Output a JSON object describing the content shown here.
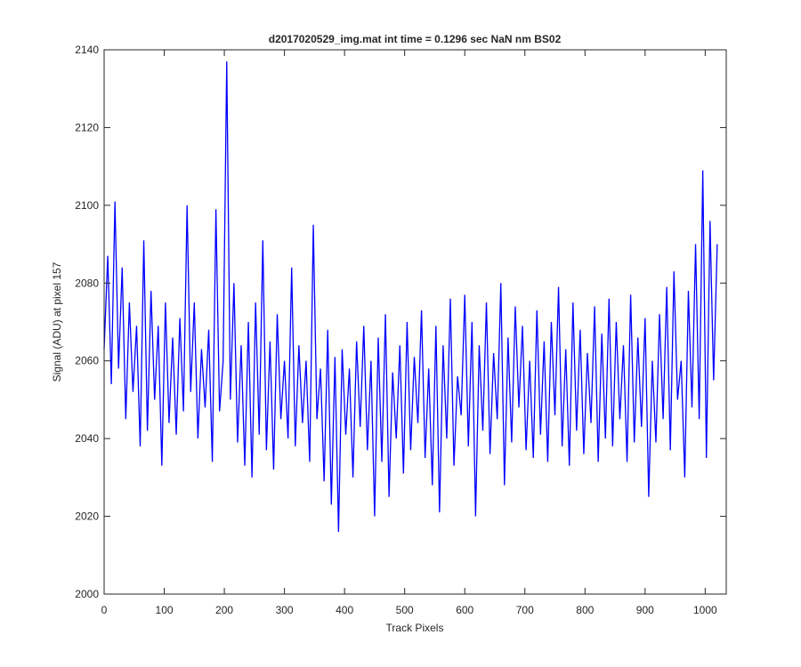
{
  "chart_data": {
    "type": "line",
    "title": "d2017020529_img.mat int time = 0.1296 sec  NaN nm BS02",
    "x_label": "Track Pixels",
    "y_label": "Signal (ADU) at pixel 157",
    "color": "#0000ff",
    "xlim": [
      0,
      1035
    ],
    "ylim": [
      2000,
      2140
    ],
    "xticks": [
      0,
      100,
      200,
      300,
      400,
      500,
      600,
      700,
      800,
      900,
      1000
    ],
    "yticks": [
      2000,
      2020,
      2040,
      2060,
      2080,
      2100,
      2120,
      2140
    ],
    "x": [
      0,
      6,
      12,
      18,
      24,
      30,
      36,
      42,
      48,
      54,
      60,
      66,
      72,
      78,
      84,
      90,
      96,
      102,
      108,
      114,
      120,
      126,
      132,
      138,
      144,
      150,
      156,
      162,
      168,
      174,
      180,
      186,
      192,
      198,
      204,
      210,
      216,
      222,
      228,
      234,
      240,
      246,
      252,
      258,
      264,
      270,
      276,
      282,
      288,
      294,
      300,
      306,
      312,
      318,
      324,
      330,
      336,
      342,
      348,
      354,
      360,
      366,
      372,
      378,
      384,
      390,
      396,
      402,
      408,
      414,
      420,
      426,
      432,
      438,
      444,
      450,
      456,
      462,
      468,
      474,
      480,
      486,
      492,
      498,
      504,
      510,
      516,
      522,
      528,
      534,
      540,
      546,
      552,
      558,
      564,
      570,
      576,
      582,
      588,
      594,
      600,
      606,
      612,
      618,
      624,
      630,
      636,
      642,
      648,
      654,
      660,
      666,
      672,
      678,
      684,
      690,
      696,
      702,
      708,
      714,
      720,
      726,
      732,
      738,
      744,
      750,
      756,
      762,
      768,
      774,
      780,
      786,
      792,
      798,
      804,
      810,
      816,
      822,
      828,
      834,
      840,
      846,
      852,
      858,
      864,
      870,
      876,
      882,
      888,
      894,
      900,
      906,
      912,
      918,
      924,
      930,
      936,
      942,
      948,
      954,
      960,
      966,
      972,
      978,
      984,
      990,
      996,
      1002,
      1008,
      1014,
      1020
    ],
    "values": [
      2063,
      2087,
      2054,
      2101,
      2058,
      2084,
      2045,
      2075,
      2052,
      2069,
      2038,
      2091,
      2042,
      2078,
      2050,
      2069,
      2033,
      2075,
      2044,
      2066,
      2041,
      2071,
      2047,
      2100,
      2052,
      2075,
      2040,
      2063,
      2048,
      2068,
      2034,
      2099,
      2047,
      2060,
      2137,
      2050,
      2080,
      2039,
      2064,
      2033,
      2070,
      2030,
      2075,
      2041,
      2091,
      2037,
      2065,
      2032,
      2072,
      2045,
      2060,
      2040,
      2084,
      2038,
      2064,
      2044,
      2060,
      2034,
      2095,
      2045,
      2058,
      2029,
      2068,
      2023,
      2061,
      2016,
      2063,
      2041,
      2058,
      2030,
      2065,
      2043,
      2069,
      2037,
      2060,
      2020,
      2066,
      2034,
      2072,
      2025,
      2057,
      2040,
      2064,
      2031,
      2070,
      2037,
      2061,
      2044,
      2073,
      2035,
      2058,
      2028,
      2069,
      2021,
      2064,
      2040,
      2076,
      2033,
      2056,
      2046,
      2077,
      2038,
      2070,
      2020,
      2064,
      2042,
      2075,
      2036,
      2062,
      2045,
      2080,
      2028,
      2066,
      2039,
      2074,
      2048,
      2069,
      2037,
      2060,
      2035,
      2073,
      2041,
      2065,
      2034,
      2070,
      2046,
      2079,
      2038,
      2063,
      2033,
      2075,
      2042,
      2068,
      2036,
      2062,
      2044,
      2074,
      2034,
      2067,
      2040,
      2076,
      2038,
      2070,
      2045,
      2064,
      2034,
      2077,
      2039,
      2066,
      2043,
      2071,
      2025,
      2060,
      2039,
      2072,
      2045,
      2079,
      2037,
      2083,
      2050,
      2060,
      2030,
      2078,
      2048,
      2090,
      2045,
      2109,
      2035,
      2096,
      2055,
      2090
    ]
  }
}
